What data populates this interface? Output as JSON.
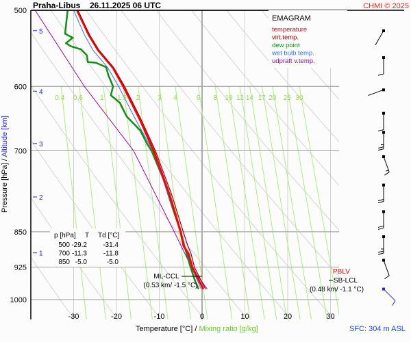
{
  "chart_data": {
    "type": "line",
    "title": "Praha-Libus",
    "subtitle": "26.11.2025 06 UTC",
    "copyright": "CHMI © 2025",
    "diagram_label": "EMAGRAM",
    "xlabel": "Temperature [°C]",
    "xlabel_sep": "/",
    "xlabel2": "Mixing ratio [g/kg]",
    "ylabel": "Pressure [hPa]",
    "ylabel_sep": "/",
    "ylabel2": "Altitude [km]",
    "surface_note": "SFC: 304 m ASL",
    "xlim": [
      -40,
      32
    ],
    "ylim": [
      1050,
      500
    ],
    "y_scale": "log",
    "grid": true,
    "x_ticks": [
      -30,
      -20,
      -10,
      0,
      10,
      20,
      30
    ],
    "y_ticks": [
      500,
      600,
      700,
      850,
      925,
      1000
    ],
    "altitude_ticks": [
      {
        "km": "5",
        "p": 525
      },
      {
        "km": "4",
        "p": 607
      },
      {
        "km": "3",
        "p": 688
      },
      {
        "km": "2",
        "p": 782
      },
      {
        "km": "1",
        "p": 894
      }
    ],
    "mixing_ratio_labels": [
      "0.4",
      "0.6",
      "1",
      "1.5",
      "2",
      "3",
      "4",
      "6",
      "8",
      "10",
      "12",
      "14",
      "17",
      "20",
      "25",
      "30"
    ],
    "legend": {
      "placement": "top-right",
      "items": [
        {
          "name": "temperature",
          "color": "#ff0000"
        },
        {
          "name": "virt.temp.",
          "color": "#a00000"
        },
        {
          "name": "dew point",
          "color": "#109010"
        },
        {
          "name": "wet bulb temp.",
          "color": "#3070ff"
        },
        {
          "name": "udpraft v.temp.",
          "color": "#a000b0"
        }
      ]
    },
    "series": [
      {
        "name": "temperature",
        "p": [
          500,
          530,
          550,
          574,
          600,
          650,
          700,
          780,
          850,
          880,
          895,
          925,
          950,
          975
        ],
        "t": [
          -29.2,
          -26.5,
          -24.3,
          -20.8,
          -18.4,
          -14.5,
          -11.3,
          -7.5,
          -5.0,
          -4.3,
          -3.2,
          -2.3,
          -1.0,
          0.3
        ]
      },
      {
        "name": "virt.temp.",
        "p": [
          500,
          530,
          550,
          574,
          600,
          650,
          700,
          780,
          850,
          880,
          895,
          925,
          950,
          975
        ],
        "t": [
          -29.0,
          -26.3,
          -24.1,
          -20.6,
          -18.1,
          -14.2,
          -10.9,
          -7.0,
          -4.4,
          -3.3,
          -2.6,
          -1.8,
          -0.5,
          0.8
        ]
      },
      {
        "name": "dew point",
        "p": [
          500,
          529,
          534,
          541,
          545,
          549,
          557,
          566,
          567,
          573,
          584,
          600,
          613,
          624,
          645,
          667,
          689,
          700,
          750,
          800,
          850,
          900,
          925,
          960,
          975
        ],
        "t": [
          -31.4,
          -32,
          -30.2,
          -31.8,
          -30.7,
          -28.3,
          -26.9,
          -26.7,
          -24.8,
          -22.4,
          -21.9,
          -20.8,
          -21.3,
          -19.2,
          -17.6,
          -14.4,
          -12.8,
          -11.8,
          -9,
          -7,
          -5,
          -3.5,
          -2.7,
          -1.5,
          -0.8
        ]
      },
      {
        "name": "wet bulb temp.",
        "p": [
          500,
          530,
          550,
          574,
          600,
          650,
          700,
          780,
          850,
          925,
          975
        ],
        "t": [
          -30,
          -27.5,
          -25.5,
          -22,
          -19.5,
          -15.5,
          -11.5,
          -7.8,
          -5.0,
          -2.5,
          -0.2
        ]
      },
      {
        "name": "udpraft v.temp.",
        "p": [
          500,
          600,
          700,
          850,
          925,
          975
        ],
        "t": [
          -39,
          -27.5,
          -16,
          -6.5,
          -2.5,
          1.2
        ]
      }
    ],
    "table": {
      "headers": [
        "p [hPa]",
        "T",
        "Td [°C]"
      ],
      "rows": [
        [
          "500",
          "-29.2",
          "-31.4"
        ],
        [
          "700",
          "-11.3",
          "-11.8"
        ],
        [
          "850",
          "-5.0",
          "-5.0"
        ]
      ]
    },
    "annotations": [
      {
        "label": "ML-CCL",
        "detail": "(0.53 km/ -1.5 °C)",
        "p": 945,
        "t": -1.5
      },
      {
        "label": "SB-LCL",
        "detail": "(0.48 km/ -1.1 °C)",
        "overlay": "PBLV",
        "p": 945
      }
    ],
    "wind_barbs": [
      {
        "p": 515,
        "dir": 210,
        "kt": 0
      },
      {
        "p": 560,
        "dir": 180,
        "kt": 10
      },
      {
        "p": 605,
        "dir": 250,
        "kt": 0
      },
      {
        "p": 640,
        "dir": 180,
        "kt": 10
      },
      {
        "p": 670,
        "dir": 180,
        "kt": 25
      },
      {
        "p": 710,
        "dir": 160,
        "kt": 15
      },
      {
        "p": 760,
        "dir": 180,
        "kt": 20
      },
      {
        "p": 810,
        "dir": 180,
        "kt": 20
      },
      {
        "p": 860,
        "dir": 180,
        "kt": 25
      },
      {
        "p": 910,
        "dir": 160,
        "kt": 10
      },
      {
        "p": 975,
        "dir": 135,
        "kt": 10
      }
    ]
  }
}
